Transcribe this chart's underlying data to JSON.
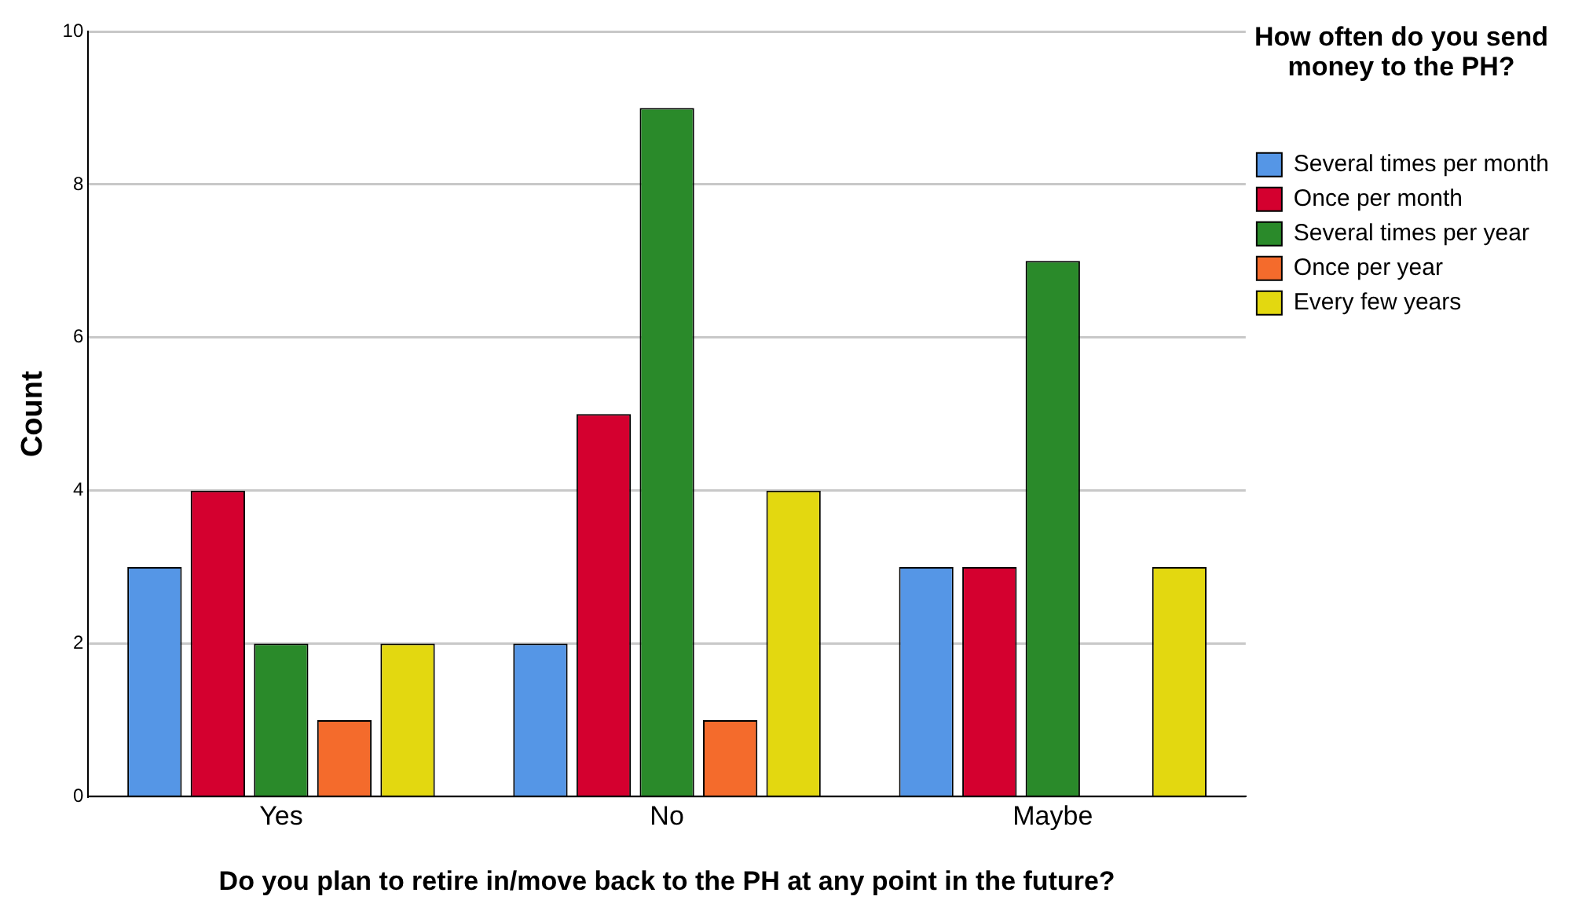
{
  "chart_data": {
    "type": "bar",
    "xlabel": "Do you plan to retire in/move back to the PH at any point in the future?",
    "ylabel": "Count",
    "legend_title": "How often do you send money to the PH?",
    "categories": [
      "Yes",
      "No",
      "Maybe"
    ],
    "series": [
      {
        "name": "Several times per month",
        "color": "#5596e6",
        "values": [
          3,
          2,
          3
        ]
      },
      {
        "name": "Once per month",
        "color": "#d4002f",
        "values": [
          4,
          5,
          3
        ]
      },
      {
        "name": "Several times per year",
        "color": "#2a8a2a",
        "values": [
          2,
          9,
          7
        ]
      },
      {
        "name": "Once per year",
        "color": "#f46b2c",
        "values": [
          1,
          1,
          null
        ]
      },
      {
        "name": "Every few years",
        "color": "#e3d810",
        "values": [
          2,
          4,
          3
        ]
      }
    ],
    "ylim": [
      0,
      10
    ],
    "yticks": [
      0,
      2,
      4,
      6,
      8,
      10
    ],
    "grid": "y",
    "legend": "right"
  }
}
